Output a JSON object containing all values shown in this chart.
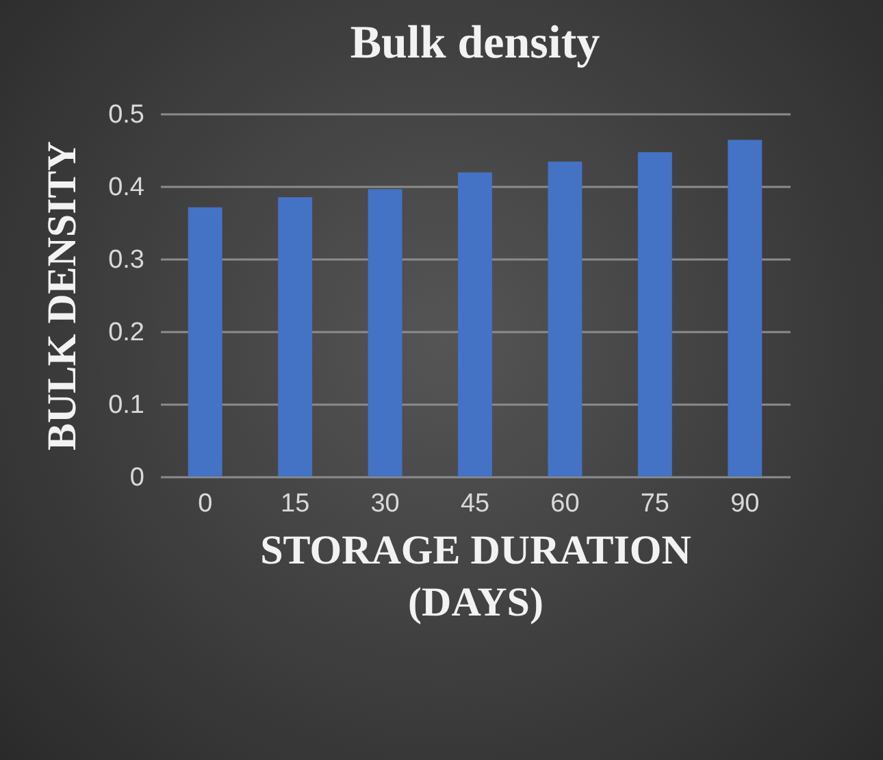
{
  "chart_data": {
    "type": "bar",
    "title": "Bulk density",
    "xlabel": "STORAGE DURATION\n(DAYS)",
    "ylabel": "BULK DENSITY",
    "categories": [
      "0",
      "15",
      "30",
      "45",
      "60",
      "75",
      "90"
    ],
    "values": [
      0.371,
      0.385,
      0.396,
      0.419,
      0.434,
      0.447,
      0.464
    ],
    "color": "#4472c4",
    "ylim": [
      0,
      0.5
    ],
    "yticks": [
      0,
      0.1,
      0.2,
      0.3,
      0.4,
      0.5
    ],
    "grid": "y"
  }
}
